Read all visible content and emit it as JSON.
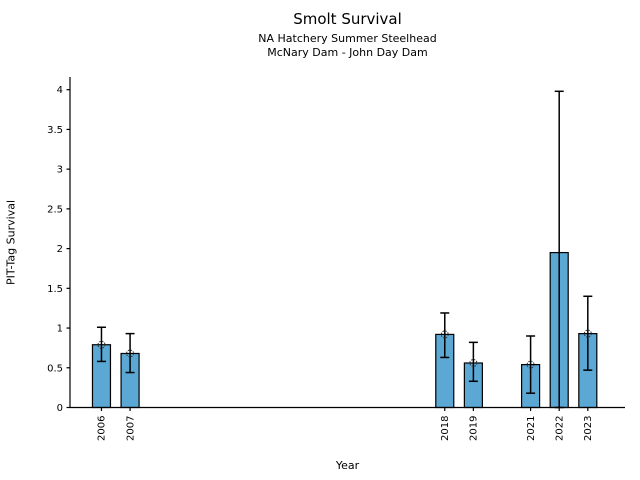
{
  "chart_data": {
    "type": "bar",
    "title": "Smolt Survival",
    "subtitle_line1": "NA Hatchery Summer Steelhead",
    "subtitle_line2": "McNary Dam - John Day Dam",
    "xlabel": "Year",
    "ylabel": "PIT-Tag Survival",
    "categories": [
      2006,
      2007,
      2018,
      2019,
      2021,
      2022,
      2023
    ],
    "values": [
      0.79,
      0.68,
      0.92,
      0.56,
      0.54,
      1.95,
      0.93
    ],
    "error_low": [
      0.58,
      0.44,
      0.63,
      0.33,
      0.18,
      0.0,
      0.47
    ],
    "error_high": [
      1.01,
      0.93,
      1.19,
      0.82,
      0.9,
      3.98,
      1.4
    ],
    "point_markers": [
      true,
      true,
      true,
      true,
      true,
      false,
      true
    ],
    "yticks": [
      0,
      0.5,
      1,
      1.5,
      2,
      2.5,
      3,
      3.5,
      4
    ],
    "ylim": [
      0,
      4.16
    ],
    "xlim": [
      2004.9,
      2024.3
    ],
    "grid": false,
    "legend": "none",
    "bar_color": "#5BA8D5",
    "bar_edge_color": "#000000",
    "error_color": "#000000",
    "marker_edge_color": "#333333",
    "axis_color": "#000000",
    "text_color": "#000000"
  }
}
